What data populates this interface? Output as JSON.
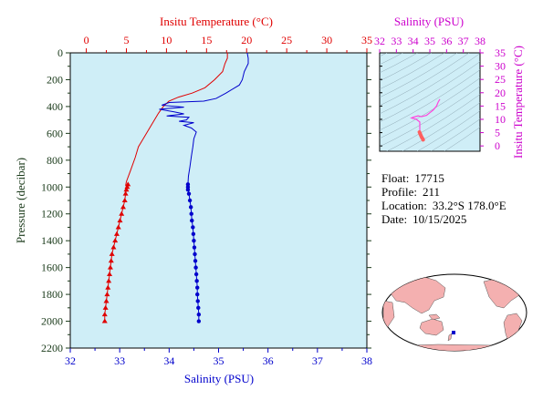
{
  "colors": {
    "plot_bg": "#cfeef7",
    "temperature": "#e00000",
    "salinity": "#0000cc",
    "pressure_axis": "#1a3a1a",
    "ts_axis": "#cc00cc",
    "ts_trace": "#ff44dd",
    "ts_recent": "#ff6060"
  },
  "chart_data": [
    {
      "type": "line",
      "title": "",
      "top_axis": {
        "label": "Insitu Temperature (°C)",
        "range": [
          -2,
          35
        ],
        "ticks": [
          0,
          5,
          10,
          15,
          20,
          25,
          30,
          35
        ],
        "color": "#e00000"
      },
      "bottom_axis": {
        "label": "Salinity (PSU)",
        "range": [
          32,
          38
        ],
        "ticks": [
          32,
          33,
          34,
          35,
          36,
          37,
          38
        ],
        "color": "#0000cc"
      },
      "left_axis": {
        "label": "Pressure (decibar)",
        "range": [
          0,
          2200
        ],
        "inverted": true,
        "ticks": [
          0,
          200,
          400,
          600,
          800,
          1000,
          1200,
          1400,
          1600,
          1800,
          2000,
          2200
        ]
      },
      "grid": false,
      "series": [
        {
          "quantity": "temperature",
          "axis": "top",
          "line": [
            [
              17.6,
              0
            ],
            [
              17.6,
              40
            ],
            [
              17.3,
              80
            ],
            [
              17,
              140
            ],
            [
              16,
              200
            ],
            [
              14.8,
              260
            ],
            [
              13.2,
              300
            ],
            [
              11.5,
              330
            ],
            [
              10.3,
              360
            ],
            [
              9.6,
              400
            ],
            [
              9.0,
              450
            ],
            [
              8.5,
              500
            ],
            [
              8.0,
              550
            ],
            [
              7.4,
              610
            ],
            [
              6.9,
              660
            ],
            [
              6.5,
              700
            ],
            [
              6.1,
              780
            ],
            [
              5.5,
              880
            ],
            [
              5.0,
              960
            ],
            [
              4.9,
              990
            ]
          ],
          "markers": [
            [
              5.2,
              980
            ],
            [
              5.1,
              1000
            ],
            [
              5.0,
              1020
            ],
            [
              4.9,
              1050
            ],
            [
              4.8,
              1100
            ],
            [
              4.6,
              1150
            ],
            [
              4.4,
              1200
            ],
            [
              4.2,
              1250
            ],
            [
              4.0,
              1300
            ],
            [
              3.8,
              1350
            ],
            [
              3.6,
              1400
            ],
            [
              3.4,
              1450
            ],
            [
              3.2,
              1500
            ],
            [
              3.1,
              1550
            ],
            [
              3.0,
              1600
            ],
            [
              2.9,
              1650
            ],
            [
              2.8,
              1700
            ],
            [
              2.7,
              1750
            ],
            [
              2.6,
              1800
            ],
            [
              2.5,
              1850
            ],
            [
              2.4,
              1900
            ],
            [
              2.3,
              1950
            ],
            [
              2.3,
              2000
            ]
          ]
        },
        {
          "quantity": "salinity",
          "axis": "bottom",
          "line": [
            [
              35.58,
              0
            ],
            [
              35.6,
              40
            ],
            [
              35.6,
              80
            ],
            [
              35.52,
              140
            ],
            [
              35.48,
              200
            ],
            [
              35.42,
              240
            ],
            [
              35.15,
              300
            ],
            [
              34.95,
              340
            ],
            [
              34.7,
              360
            ],
            [
              34.0,
              370
            ],
            [
              33.85,
              390
            ],
            [
              34.3,
              405
            ],
            [
              33.8,
              420
            ],
            [
              34.1,
              440
            ],
            [
              34.3,
              455
            ],
            [
              33.95,
              470
            ],
            [
              34.4,
              480
            ],
            [
              34.35,
              500
            ],
            [
              34.2,
              510
            ],
            [
              34.5,
              520
            ],
            [
              34.3,
              540
            ],
            [
              34.45,
              560
            ],
            [
              34.55,
              590
            ],
            [
              34.5,
              640
            ],
            [
              34.48,
              700
            ],
            [
              34.45,
              770
            ],
            [
              34.42,
              850
            ],
            [
              34.39,
              920
            ],
            [
              34.38,
              980
            ]
          ],
          "markers": [
            [
              34.38,
              980
            ],
            [
              34.38,
              1000
            ],
            [
              34.38,
              1020
            ],
            [
              34.4,
              1050
            ],
            [
              34.42,
              1100
            ],
            [
              34.44,
              1150
            ],
            [
              34.45,
              1200
            ],
            [
              34.46,
              1250
            ],
            [
              34.48,
              1300
            ],
            [
              34.49,
              1350
            ],
            [
              34.5,
              1400
            ],
            [
              34.51,
              1450
            ],
            [
              34.52,
              1500
            ],
            [
              34.53,
              1550
            ],
            [
              34.54,
              1600
            ],
            [
              34.55,
              1650
            ],
            [
              34.56,
              1700
            ],
            [
              34.57,
              1750
            ],
            [
              34.57,
              1800
            ],
            [
              34.58,
              1850
            ],
            [
              34.59,
              1900
            ],
            [
              34.6,
              1950
            ],
            [
              34.6,
              2000
            ]
          ]
        }
      ]
    },
    {
      "type": "scatter",
      "title": "",
      "top_axis": {
        "label": "Salinity (PSU)",
        "range": [
          32,
          38
        ],
        "ticks": [
          32,
          33,
          34,
          35,
          36,
          37,
          38
        ]
      },
      "right_axis": {
        "label": "Insitu Temperature (°C)",
        "range": [
          -2,
          35
        ],
        "ticks": [
          0,
          5,
          10,
          15,
          20,
          25,
          30,
          35
        ]
      },
      "density_contours": true,
      "trace": [
        [
          35.6,
          17.6
        ],
        [
          35.5,
          16.5
        ],
        [
          35.4,
          15
        ],
        [
          35.2,
          13.5
        ],
        [
          35.0,
          12.5
        ],
        [
          34.8,
          11.5
        ],
        [
          34.5,
          11.0
        ],
        [
          34.3,
          11.3
        ],
        [
          34.0,
          10.8
        ],
        [
          33.9,
          10.5
        ],
        [
          34.2,
          10.0
        ],
        [
          34.4,
          9.0
        ],
        [
          34.4,
          7.5
        ],
        [
          34.4,
          6.0
        ],
        [
          34.4,
          5.0
        ]
      ],
      "recent": [
        [
          34.38,
          5.2
        ],
        [
          34.42,
          4.6
        ],
        [
          34.46,
          4.0
        ],
        [
          34.5,
          3.4
        ],
        [
          34.54,
          3.0
        ],
        [
          34.58,
          2.6
        ],
        [
          34.6,
          2.3
        ]
      ]
    }
  ],
  "info": {
    "float_label": "Float:",
    "float_value": "17715",
    "profile_label": "Profile:",
    "profile_value": "211",
    "location_label": "Location:",
    "location_value": "33.2°S  178.0°E",
    "date_label": "Date:",
    "date_value": "10/15/2025"
  },
  "map": {
    "marker_lat": -33.2,
    "marker_lon": 178.0,
    "land_color": "#f4b0b0",
    "ocean_color": "#ffffff"
  }
}
